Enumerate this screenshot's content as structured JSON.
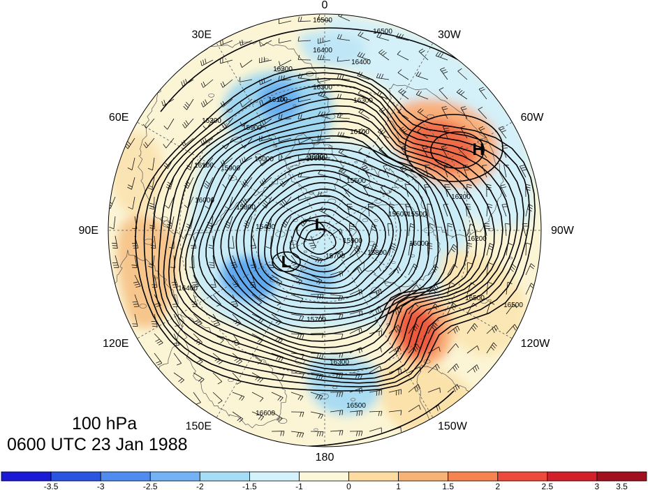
{
  "plot": {
    "level_text": "100 hPa",
    "time_text": "0600 UTC 23 Jan 1988"
  },
  "longitude_labels": [
    {
      "text": "0",
      "lon": 0
    },
    {
      "text": "30W",
      "lon": -30
    },
    {
      "text": "60W",
      "lon": -60
    },
    {
      "text": "90W",
      "lon": -90
    },
    {
      "text": "120W",
      "lon": -120
    },
    {
      "text": "150W",
      "lon": -150
    },
    {
      "text": "180",
      "lon": 180
    },
    {
      "text": "150E",
      "lon": 150
    },
    {
      "text": "120E",
      "lon": 120
    },
    {
      "text": "90E",
      "lon": 90
    },
    {
      "text": "60E",
      "lon": 60
    },
    {
      "text": "30E",
      "lon": 30
    }
  ],
  "height_contours": {
    "interval": 50,
    "range": [
      15400,
      16600
    ],
    "labels": [
      "16500",
      "16500",
      "16400",
      "16400",
      "16300",
      "16300",
      "16300",
      "16300",
      "16200",
      "16200",
      "16100",
      "16100",
      "16100",
      "16000",
      "16000",
      "16000",
      "16000",
      "15900",
      "15900",
      "15900",
      "15800",
      "15800",
      "15700",
      "15700",
      "15600",
      "15600",
      "15500",
      "15500",
      "15400",
      "16400",
      "16500",
      "16500",
      "16600",
      "16300",
      "16500"
    ]
  },
  "pressure_centers": [
    {
      "label": "H",
      "type": "high"
    },
    {
      "label": "L",
      "type": "low"
    },
    {
      "label": "L",
      "type": "low"
    }
  ],
  "anomaly_regions": [
    {
      "name": "north-atlantic-high",
      "value": 3.0
    },
    {
      "name": "north-pacific-high",
      "value": 3.0
    },
    {
      "name": "siberian-low",
      "value": -2.0
    },
    {
      "name": "scandinavian-low",
      "value": -2.0
    },
    {
      "name": "bering-low",
      "value": -1.5
    },
    {
      "name": "central-asia-warm",
      "value": 1.5
    }
  ],
  "colorbar": {
    "colors": [
      "#1a1ad6",
      "#2a55e0",
      "#4f8cf0",
      "#72b2f5",
      "#a6ddf6",
      "#d3f2fb",
      "#fbf7d8",
      "#fcdca0",
      "#f9b276",
      "#f58450",
      "#ec4a3a",
      "#d1202a",
      "#a0101f"
    ],
    "labels": [
      "-3.5",
      "-3",
      "-2.5",
      "-2",
      "-1.5",
      "-1",
      "0",
      "1",
      "1.5",
      "2",
      "2.5",
      "3",
      "3.5"
    ]
  },
  "colors": {
    "land_line": "#555555",
    "contour": "#000000",
    "grid": "#555555",
    "barb": "#111111"
  }
}
